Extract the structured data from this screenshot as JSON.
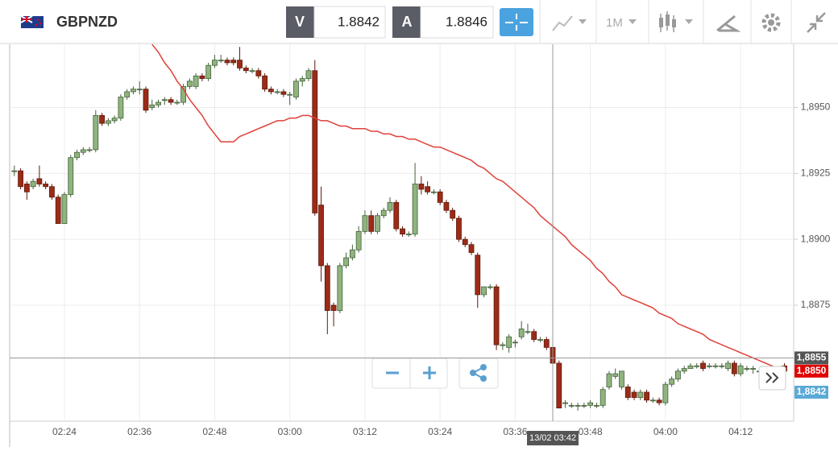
{
  "toolbar": {
    "symbol": "GBPNZD",
    "bid_label": "V",
    "bid": 1.8842,
    "ask_label": "A",
    "ask": 1.8846,
    "timeframe": "1M"
  },
  "chart_data": {
    "type": "candlestick",
    "categories": [
      null,
      null,
      null,
      null,
      null,
      null,
      null,
      null,
      "02:24",
      null,
      null,
      null,
      null,
      null,
      null,
      null,
      null,
      null,
      null,
      null,
      "02:36",
      null,
      null,
      null,
      null,
      null,
      null,
      null,
      null,
      null,
      null,
      null,
      "02:48",
      null,
      null,
      null,
      null,
      null,
      null,
      null,
      null,
      null,
      null,
      null,
      "03:00",
      null,
      null,
      null,
      null,
      null,
      null,
      null,
      null,
      null,
      null,
      null,
      "03:12",
      null,
      null,
      null,
      null,
      null,
      null,
      null,
      null,
      null,
      null,
      null,
      "03:24",
      null,
      null,
      null,
      null,
      null,
      null,
      null,
      null,
      null,
      null,
      null,
      "03:36",
      null,
      null,
      null,
      null,
      null,
      null,
      null,
      null,
      null,
      null,
      null,
      "03:48",
      null,
      null,
      null,
      null,
      null,
      null,
      null,
      null,
      null,
      null,
      null,
      "04:00",
      null,
      null,
      null,
      null,
      null,
      null,
      null,
      null,
      null,
      null,
      null,
      "04:12",
      null,
      null,
      null,
      null,
      null,
      null,
      null
    ],
    "open": [
      1.8926,
      1.8926,
      1.8921,
      1.892,
      1.8923,
      1.8921,
      1.892,
      1.8916,
      1.8906,
      1.8917,
      1.8931,
      1.8933,
      1.8934,
      1.8934,
      1.8947,
      1.8944,
      1.8945,
      1.8946,
      1.8954,
      1.8956,
      1.8957,
      1.8957,
      1.895,
      1.8951,
      1.8953,
      1.8953,
      1.8952,
      1.8952,
      1.8958,
      1.8958,
      1.8962,
      1.8961,
      1.8966,
      1.8968,
      1.8968,
      1.8968,
      1.8968,
      1.8965,
      1.8964,
      1.8964,
      1.8962,
      1.8957,
      1.8956,
      1.8956,
      1.8955,
      1.8954,
      1.896,
      1.8961,
      1.8964,
      1.8913,
      1.889,
      1.8875,
      1.8873,
      1.889,
      1.8893,
      1.8896,
      1.8903,
      1.8909,
      1.8903,
      1.8909,
      1.8911,
      1.8914,
      1.8904,
      1.8902,
      1.8902,
      1.8921,
      1.892,
      1.8918,
      1.8918,
      1.8914,
      1.8911,
      1.8908,
      1.89,
      1.8898,
      1.8894,
      1.8879,
      1.8882,
      1.8882,
      1.886,
      1.8859,
      1.8861,
      1.8863,
      1.8865,
      1.8865,
      1.8862,
      1.8862,
      1.8859,
      1.8853,
      1.8838,
      1.8837,
      1.8837,
      1.8837,
      1.8837,
      1.8837,
      1.8837,
      1.8844,
      1.8848,
      1.8844,
      1.8844,
      1.8842,
      1.884,
      1.8842,
      1.8839,
      1.8839,
      1.8838,
      1.8845,
      1.8847,
      1.885,
      1.8851,
      1.8852,
      1.8853,
      1.8852,
      1.8852,
      1.8852,
      1.8851,
      1.8853,
      1.8849,
      1.8851,
      1.8851,
      1.885,
      1.885,
      1.885,
      1.885,
      1.8852
    ],
    "high": [
      1.8928,
      1.8927,
      1.8922,
      1.8923,
      1.8928,
      1.8922,
      1.8921,
      1.8917,
      1.8918,
      1.8932,
      1.8934,
      1.8935,
      1.8935,
      1.8949,
      1.8948,
      1.8946,
      1.8947,
      1.8955,
      1.8957,
      1.8958,
      1.896,
      1.8958,
      1.8953,
      1.8953,
      1.8954,
      1.8954,
      1.8953,
      1.8959,
      1.8961,
      1.8963,
      1.8963,
      1.8967,
      1.897,
      1.897,
      1.8969,
      1.8969,
      1.8973,
      1.8966,
      1.8965,
      1.8965,
      1.8963,
      1.8958,
      1.8957,
      1.8957,
      1.8956,
      1.8961,
      1.8962,
      1.8965,
      1.8968,
      1.892,
      1.8891,
      1.8876,
      1.8891,
      1.8895,
      1.8898,
      1.8905,
      1.8911,
      1.8911,
      1.891,
      1.8912,
      1.8916,
      1.8915,
      1.8905,
      1.8903,
      1.8929,
      1.8924,
      1.8922,
      1.8919,
      1.8919,
      1.8915,
      1.8912,
      1.8909,
      1.8901,
      1.8899,
      1.8895,
      1.8882,
      1.8883,
      1.8883,
      1.8861,
      1.8864,
      1.8862,
      1.8869,
      1.8868,
      1.8866,
      1.8863,
      1.8863,
      1.886,
      1.8854,
      1.8839,
      1.8838,
      1.8838,
      1.8838,
      1.8839,
      1.8838,
      1.8844,
      1.885,
      1.8851,
      1.885,
      1.8845,
      1.8843,
      1.8843,
      1.8843,
      1.884,
      1.884,
      1.8846,
      1.8848,
      1.8851,
      1.8852,
      1.8853,
      1.8853,
      1.8854,
      1.8853,
      1.8853,
      1.8853,
      1.8854,
      1.8854,
      1.8853,
      1.8852,
      1.8852,
      1.8851,
      1.8851,
      1.8851,
      1.8851,
      1.8853
    ],
    "low": [
      1.8924,
      1.8919,
      1.8915,
      1.8919,
      1.892,
      1.8919,
      1.8915,
      1.8906,
      1.8906,
      1.8916,
      1.893,
      1.8932,
      1.8933,
      1.8933,
      1.8943,
      1.8943,
      1.8944,
      1.8945,
      1.8953,
      1.8955,
      1.8955,
      1.8948,
      1.8949,
      1.895,
      1.8951,
      1.8951,
      1.8951,
      1.8951,
      1.8957,
      1.8957,
      1.896,
      1.896,
      1.8965,
      1.8967,
      1.8966,
      1.8966,
      1.8964,
      1.8963,
      1.8963,
      1.8961,
      1.8956,
      1.8955,
      1.8955,
      1.8954,
      1.8951,
      1.8953,
      1.8958,
      1.896,
      1.8909,
      1.8884,
      1.8864,
      1.8867,
      1.8872,
      1.8889,
      1.8892,
      1.8895,
      1.8902,
      1.8902,
      1.8902,
      1.8908,
      1.891,
      1.8903,
      1.8901,
      1.8901,
      1.8901,
      1.8917,
      1.8917,
      1.8917,
      1.8913,
      1.891,
      1.8907,
      1.8899,
      1.8897,
      1.8894,
      1.8874,
      1.8878,
      1.8881,
      1.8858,
      1.8858,
      1.8857,
      1.8859,
      1.8862,
      1.8864,
      1.8861,
      1.8861,
      1.8858,
      1.8852,
      1.8836,
      1.8836,
      1.8836,
      1.8835,
      1.8836,
      1.8836,
      1.8836,
      1.8836,
      1.8843,
      1.8847,
      1.8843,
      1.8839,
      1.8839,
      1.8839,
      1.8838,
      1.8838,
      1.8837,
      1.8837,
      1.8844,
      1.8846,
      1.8849,
      1.8851,
      1.8851,
      1.885,
      1.8851,
      1.8851,
      1.8851,
      1.885,
      1.8848,
      1.8848,
      1.885,
      1.8849,
      1.8849,
      1.8849,
      1.8849,
      1.8849,
      1.8849
    ],
    "close": [
      1.8926,
      1.892,
      1.8918,
      1.8922,
      1.8921,
      1.892,
      1.8916,
      1.8906,
      1.8917,
      1.8931,
      1.8933,
      1.8934,
      1.8934,
      1.8947,
      1.8944,
      1.8945,
      1.8946,
      1.8954,
      1.8956,
      1.8957,
      1.8957,
      1.8949,
      1.8951,
      1.8952,
      1.8953,
      1.8952,
      1.8952,
      1.8958,
      1.896,
      1.8962,
      1.8961,
      1.8966,
      1.8968,
      1.8968,
      1.8967,
      1.8967,
      1.8965,
      1.8964,
      1.8964,
      1.8962,
      1.8957,
      1.8956,
      1.8956,
      1.8955,
      1.8955,
      1.896,
      1.8961,
      1.8964,
      1.891,
      1.889,
      1.8873,
      1.8873,
      1.889,
      1.8893,
      1.8896,
      1.8903,
      1.8909,
      1.8903,
      1.8909,
      1.8911,
      1.8914,
      1.8904,
      1.8902,
      1.8902,
      1.8921,
      1.8919,
      1.8918,
      1.8918,
      1.8914,
      1.8911,
      1.8908,
      1.89,
      1.8898,
      1.8895,
      1.8879,
      1.8882,
      1.8882,
      1.886,
      1.886,
      1.8863,
      1.8861,
      1.8866,
      1.8865,
      1.8862,
      1.8862,
      1.8859,
      1.8853,
      1.8836,
      1.8838,
      1.8837,
      1.8837,
      1.8837,
      1.8838,
      1.8837,
      1.8843,
      1.8849,
      1.8849,
      1.885,
      1.884,
      1.884,
      1.8842,
      1.8839,
      1.8839,
      1.8838,
      1.8845,
      1.8847,
      1.885,
      1.8851,
      1.8852,
      1.8852,
      1.8851,
      1.8852,
      1.8852,
      1.8852,
      1.8853,
      1.8849,
      1.8852,
      1.8851,
      1.8851,
      1.885,
      1.885,
      1.885,
      1.885,
      1.885
    ],
    "up_color": "#8fb47e",
    "down_color": "#9c2b17",
    "overlay": {
      "type": "line",
      "color": "#e0413a",
      "values": [
        null,
        null,
        null,
        null,
        null,
        null,
        null,
        null,
        null,
        null,
        null,
        null,
        null,
        null,
        null,
        null,
        null,
        null,
        null,
        null,
        null,
        null,
        1.8974,
        1.8971,
        1.8967,
        1.8964,
        1.896,
        1.8957,
        1.8953,
        1.895,
        1.8947,
        1.8943,
        1.894,
        1.8937,
        1.8937,
        1.8937,
        1.8939,
        1.894,
        1.8941,
        1.8942,
        1.8943,
        1.8944,
        1.8945,
        1.8945,
        1.8946,
        1.8946,
        1.8947,
        1.8947,
        1.8946,
        1.8945,
        1.8945,
        1.8944,
        1.8943,
        1.8943,
        1.8942,
        1.8942,
        1.8942,
        1.8941,
        1.8941,
        1.894,
        1.894,
        1.8939,
        1.8939,
        1.8938,
        1.8938,
        1.8937,
        1.8936,
        1.8935,
        1.8935,
        1.8934,
        1.8933,
        1.8932,
        1.8931,
        1.893,
        1.8928,
        1.8927,
        1.8925,
        1.8923,
        1.8922,
        1.892,
        1.8918,
        1.8916,
        1.8914,
        1.8912,
        1.8909,
        1.8907,
        1.8905,
        1.8903,
        1.8901,
        1.8898,
        1.8896,
        1.8894,
        1.8892,
        1.8889,
        1.8887,
        1.8884,
        1.8882,
        1.8879,
        1.8878,
        1.8877,
        1.8876,
        1.8875,
        1.8874,
        1.8872,
        1.8871,
        1.887,
        1.8868,
        1.8867,
        1.8866,
        1.8865,
        1.8864,
        1.8862,
        1.8861,
        1.886,
        1.8859,
        1.8858,
        1.8857,
        1.8856,
        1.8855,
        1.8854,
        1.8853,
        1.8852,
        1.8851,
        1.885
      ]
    },
    "ylim": [
      1.8831,
      1.8974
    ],
    "yticks": [
      {
        "value": 1.8875,
        "label": "1,8875"
      },
      {
        "value": 1.89,
        "label": "1,8900"
      },
      {
        "value": 1.8925,
        "label": "1,8925"
      },
      {
        "value": 1.895,
        "label": "1,8950"
      }
    ],
    "grid": true,
    "crosshair": {
      "index": 86,
      "x_label": "13/02 03:42",
      "value": 1.8855,
      "label": "1,8855",
      "color": "#555555"
    },
    "price_markers": [
      {
        "value": 1.885,
        "label": "1,8850",
        "color": "#e00000"
      },
      {
        "value": 1.8842,
        "label": "1,8842",
        "color": "#5aa9d6"
      }
    ]
  }
}
